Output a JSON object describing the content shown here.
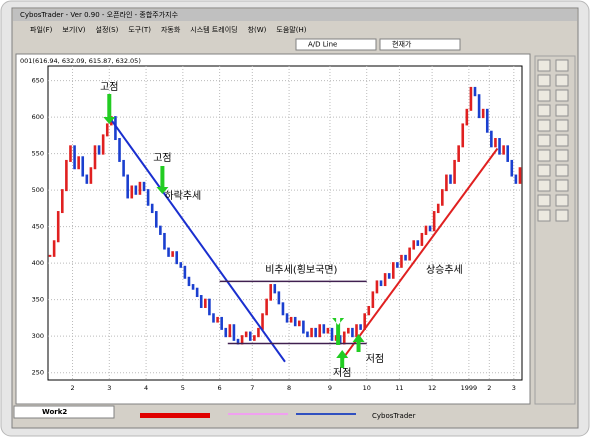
{
  "window": {
    "title": "CybosTrader - Ver 0.90 - 오픈라인 - 종합주가지수",
    "menu": [
      "파일(F)",
      "보기(V)",
      "설정(S)",
      "도구(T)",
      "자동화",
      "시스템 트레이딩",
      "창(W)",
      "도움말(H)"
    ],
    "indicator_select": "A/D Line",
    "price_select": "현재가",
    "tab": "Work2",
    "status": "CybosTrader"
  },
  "chart_data": {
    "type": "candlestick",
    "info": "001(616.94, 632.09, 615.87, 632.05)",
    "values": [
      410,
      430,
      470,
      500,
      540,
      560,
      530,
      545,
      520,
      510,
      530,
      560,
      550,
      575,
      590,
      600,
      570,
      540,
      520,
      490,
      505,
      495,
      510,
      500,
      480,
      470,
      450,
      440,
      420,
      410,
      415,
      400,
      395,
      380,
      370,
      365,
      355,
      340,
      350,
      330,
      320,
      325,
      310,
      300,
      315,
      295,
      290,
      300,
      305,
      295,
      300,
      310,
      330,
      350,
      370,
      360,
      345,
      330,
      320,
      325,
      315,
      320,
      305,
      300,
      310,
      300,
      315,
      305,
      310,
      295,
      300,
      290,
      305,
      310,
      300,
      315,
      310,
      330,
      340,
      360,
      375,
      370,
      385,
      380,
      400,
      395,
      410,
      405,
      420,
      430,
      425,
      440,
      450,
      445,
      470,
      480,
      500,
      520,
      510,
      540,
      560,
      590,
      610,
      640,
      630,
      600,
      610,
      580,
      560,
      570,
      550,
      560,
      540,
      520,
      510,
      530
    ],
    "up_color": "#e02020",
    "down_color": "#1a3fcf",
    "xlim": [
      0,
      116
    ],
    "xticks": [
      {
        "value": 6,
        "label": "2"
      },
      {
        "value": 15,
        "label": "3"
      },
      {
        "value": 24,
        "label": "4"
      },
      {
        "value": 33,
        "label": "5"
      },
      {
        "value": 42,
        "label": "6"
      },
      {
        "value": 50,
        "label": "7"
      },
      {
        "value": 59,
        "label": "8"
      },
      {
        "value": 69,
        "label": "9"
      },
      {
        "value": 78,
        "label": "10"
      },
      {
        "value": 86,
        "label": "11"
      },
      {
        "value": 94,
        "label": "12"
      },
      {
        "value": 103,
        "label": "1999"
      },
      {
        "value": 108,
        "label": "2"
      },
      {
        "value": 114,
        "label": "3"
      }
    ],
    "ylim": [
      240,
      670
    ],
    "yticks": [
      250,
      300,
      350,
      400,
      450,
      500,
      550,
      600,
      650
    ],
    "grid": true,
    "annotations": [
      "고점",
      "고점",
      "하락추세",
      "비추세(횡보국면)",
      "상승추세",
      "저점",
      "저점"
    ]
  }
}
